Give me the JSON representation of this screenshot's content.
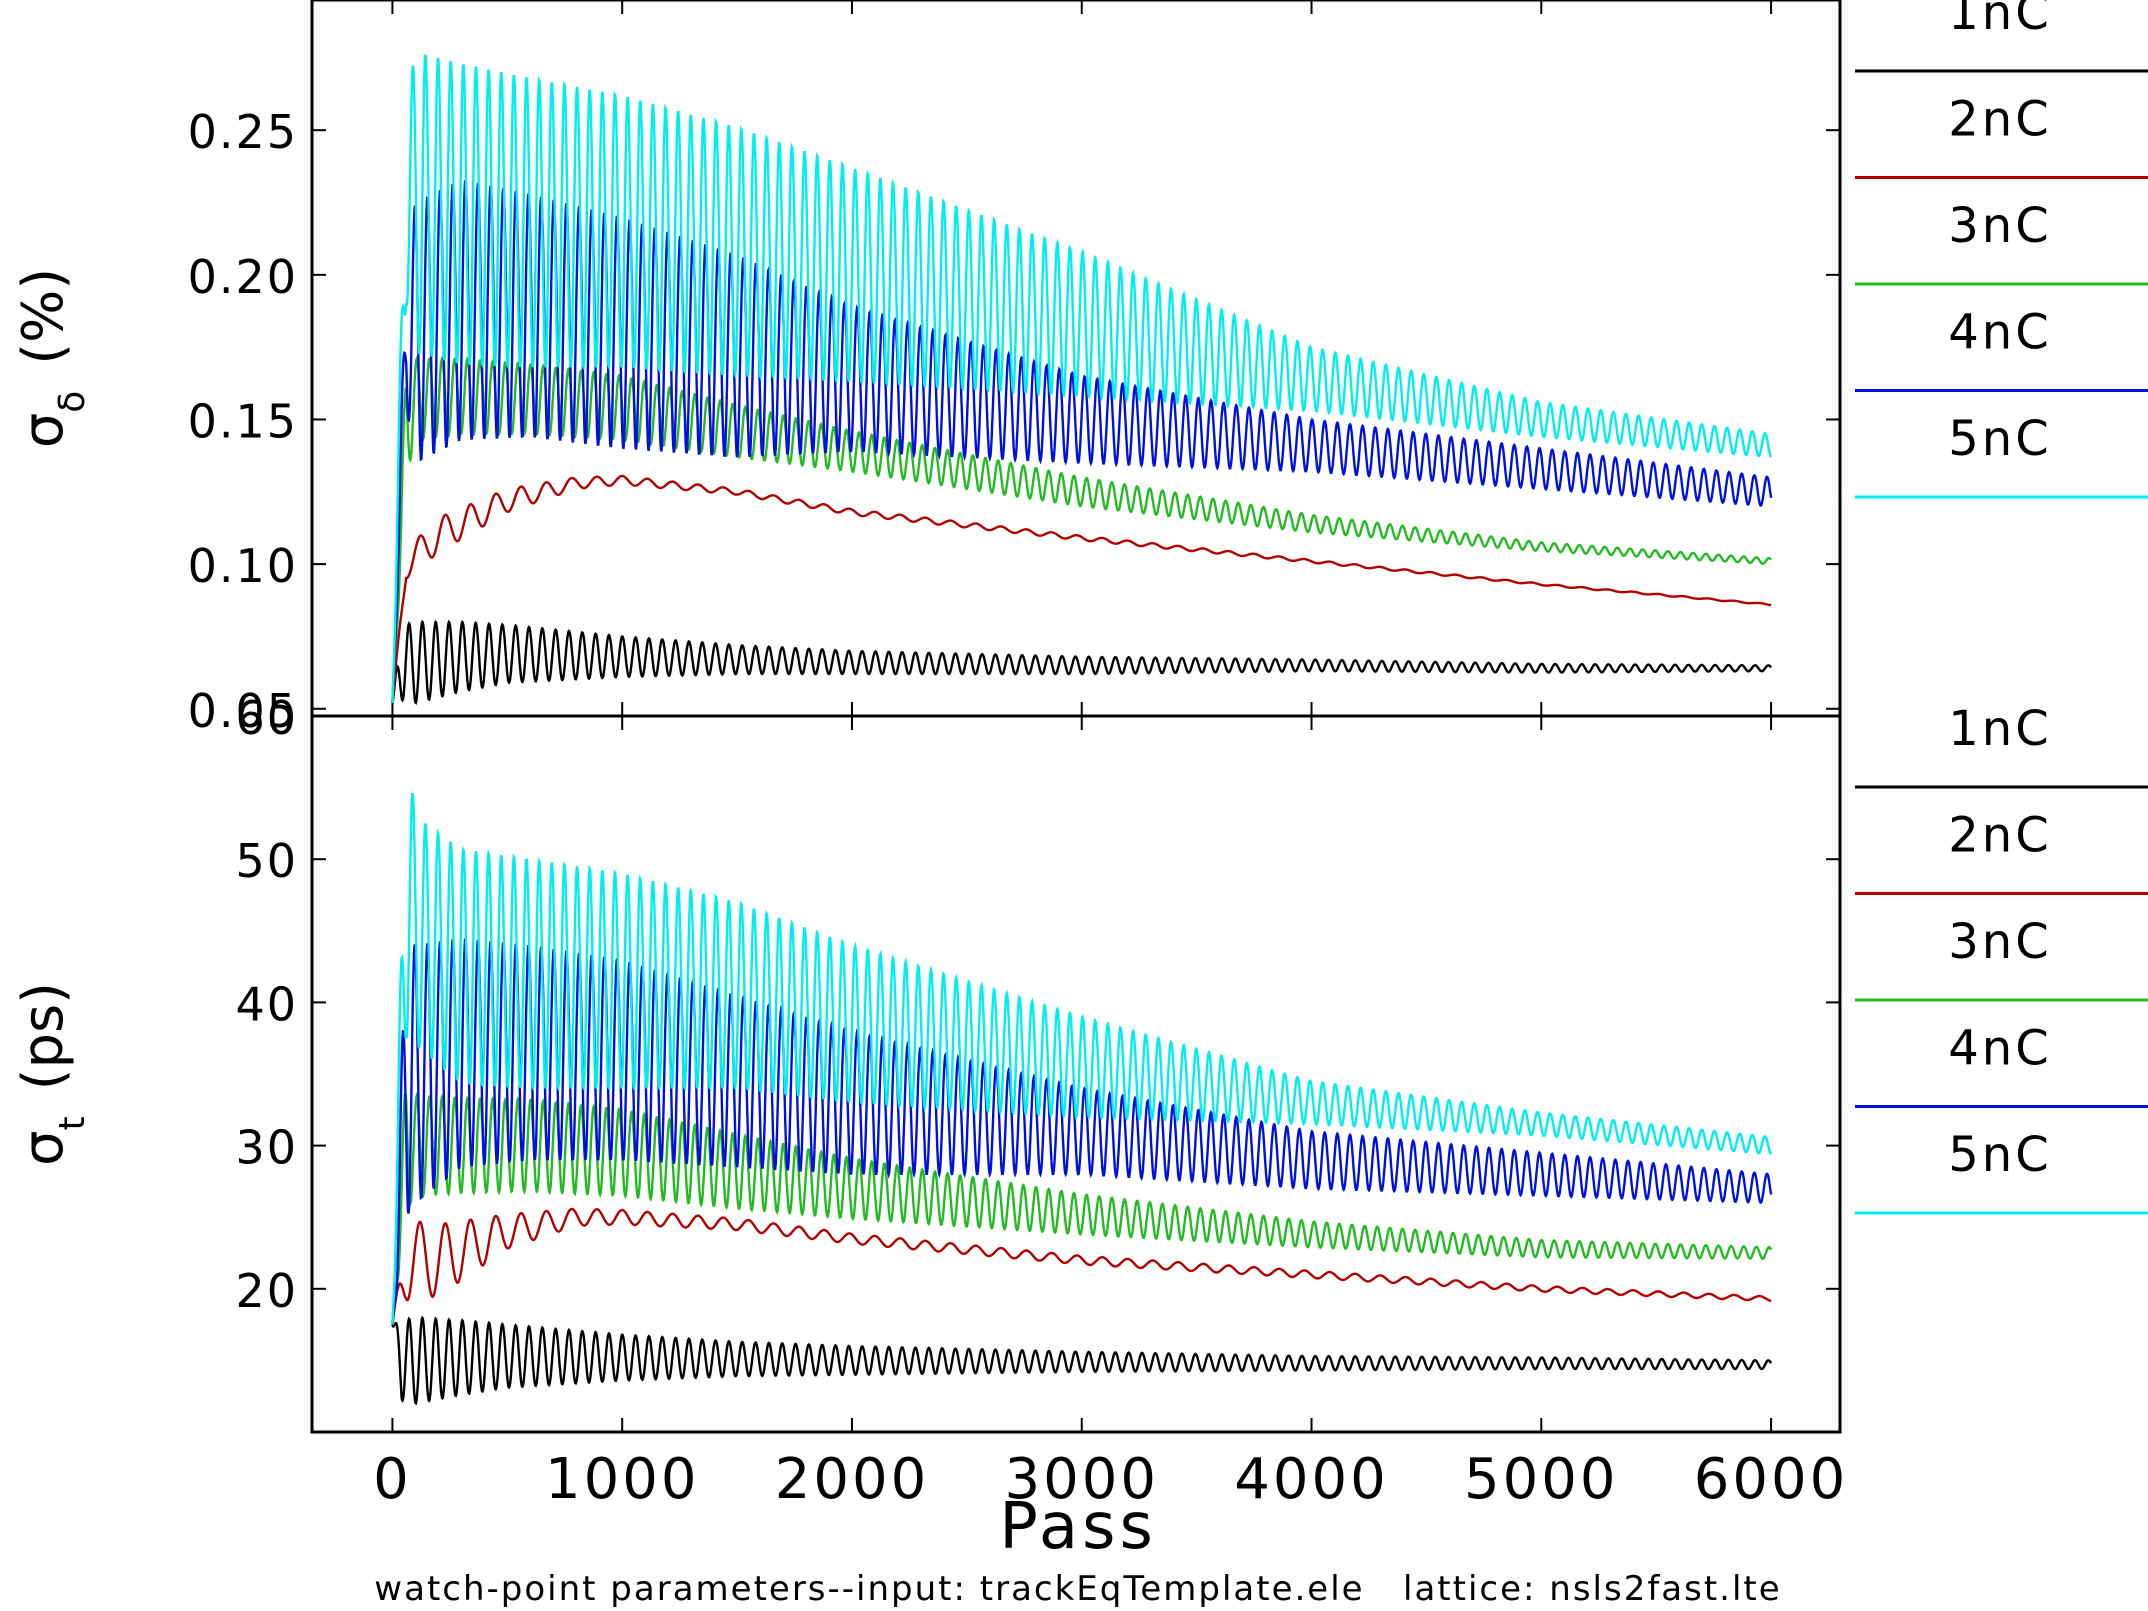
{
  "footer": {
    "caption": "watch-point parameters--input: trackEqTemplate.ele   lattice: nsls2fast.lte"
  },
  "colors": {
    "1nC": "#000000",
    "2nC": "#b00000",
    "3nC": "#22bb22",
    "4nC": "#0011dd",
    "5nC": "#00eeee"
  },
  "chart_data": [
    {
      "type": "line",
      "title": "",
      "xlabel": "Pass",
      "ylabel": "σδ (%)",
      "ylabel_main": "σ",
      "ylabel_sub": "δ",
      "ylabel_unit": "(%)",
      "xlim": [
        -350,
        6300
      ],
      "ylim": [
        0.0475,
        0.295
      ],
      "xticks": [
        0,
        1000,
        2000,
        3000,
        4000,
        5000,
        6000
      ],
      "yticks": [
        0.05,
        0.1,
        0.15,
        0.2,
        0.25
      ],
      "ytick_labels": [
        "0.05",
        "0.10",
        "0.15",
        "0.20",
        "0.25"
      ],
      "legend_position": "right",
      "series": [
        {
          "name": "1nC",
          "oscillation_period": 58,
          "x": [
            0,
            40,
            100,
            300,
            500,
            1000,
            1500,
            2000,
            3000,
            4000,
            5000,
            6000
          ],
          "mean": [
            0.052,
            0.066,
            0.066,
            0.068,
            0.069,
            0.068,
            0.067,
            0.066,
            0.065,
            0.065,
            0.064,
            0.064
          ],
          "amplitude": [
            0,
            0.013,
            0.014,
            0.012,
            0.01,
            0.007,
            0.005,
            0.004,
            0.003,
            0.002,
            0.0015,
            0.001
          ]
        },
        {
          "name": "2nC",
          "oscillation_period": 110,
          "x": [
            0,
            60,
            200,
            500,
            800,
            1000,
            1500,
            2000,
            3000,
            4000,
            5000,
            6000
          ],
          "mean": [
            0.052,
            0.1,
            0.11,
            0.122,
            0.128,
            0.129,
            0.125,
            0.118,
            0.109,
            0.101,
            0.093,
            0.086
          ],
          "amplitude": [
            0,
            0.005,
            0.006,
            0.004,
            0.002,
            0.0015,
            0.001,
            0.001,
            0.0008,
            0.0005,
            0.0003,
            0.0002
          ]
        },
        {
          "name": "3nC",
          "oscillation_period": 55,
          "x": [
            0,
            60,
            100,
            300,
            600,
            1000,
            1500,
            2000,
            3000,
            4000,
            5000,
            6000
          ],
          "mean": [
            0.052,
            0.15,
            0.157,
            0.158,
            0.157,
            0.154,
            0.146,
            0.139,
            0.125,
            0.114,
            0.106,
            0.101
          ],
          "amplitude": [
            0,
            0.02,
            0.014,
            0.013,
            0.012,
            0.011,
            0.009,
            0.007,
            0.005,
            0.003,
            0.0015,
            0.001
          ]
        },
        {
          "name": "4nC",
          "oscillation_period": 55,
          "x": [
            0,
            60,
            100,
            300,
            600,
            1000,
            1500,
            2000,
            3000,
            4000,
            5000,
            6000
          ],
          "mean": [
            0.052,
            0.18,
            0.18,
            0.188,
            0.186,
            0.18,
            0.172,
            0.164,
            0.15,
            0.141,
            0.133,
            0.125
          ],
          "amplitude": [
            0,
            0.025,
            0.045,
            0.045,
            0.042,
            0.04,
            0.035,
            0.025,
            0.015,
            0.009,
            0.007,
            0.005
          ]
        },
        {
          "name": "5nC",
          "oscillation_period": 55,
          "x": [
            0,
            60,
            100,
            300,
            600,
            1000,
            1500,
            2000,
            3000,
            4000,
            5000,
            6000
          ],
          "mean": [
            0.052,
            0.225,
            0.225,
            0.221,
            0.218,
            0.215,
            0.208,
            0.2,
            0.183,
            0.164,
            0.15,
            0.141
          ],
          "amplitude": [
            0,
            0.035,
            0.052,
            0.052,
            0.05,
            0.047,
            0.043,
            0.037,
            0.025,
            0.011,
            0.006,
            0.004
          ]
        }
      ]
    },
    {
      "type": "line",
      "title": "",
      "xlabel": "Pass",
      "ylabel": "σt (ps)",
      "ylabel_main": "σ",
      "ylabel_sub": "t",
      "ylabel_unit": "(ps)",
      "xlim": [
        -350,
        6300
      ],
      "ylim": [
        10,
        60
      ],
      "xticks": [
        0,
        1000,
        2000,
        3000,
        4000,
        5000,
        6000
      ],
      "xtick_labels": [
        "0",
        "1000",
        "2000",
        "3000",
        "4000",
        "5000",
        "6000"
      ],
      "yticks": [
        20,
        30,
        40,
        50,
        60
      ],
      "ytick_labels": [
        "20",
        "30",
        "40",
        "50",
        "60"
      ],
      "legend_position": "right",
      "series": [
        {
          "name": "1nC",
          "oscillation_period": 58,
          "x": [
            0,
            40,
            100,
            300,
            500,
            1000,
            1500,
            2000,
            3000,
            4000,
            5000,
            6000
          ],
          "mean": [
            17.5,
            15.0,
            15.0,
            15.2,
            15.3,
            15.2,
            15.1,
            15.0,
            14.9,
            14.8,
            14.8,
            14.7
          ],
          "amplitude": [
            0,
            2.8,
            3.0,
            2.6,
            2.2,
            1.6,
            1.2,
            1.0,
            0.7,
            0.5,
            0.4,
            0.3
          ]
        },
        {
          "name": "2nC",
          "oscillation_period": 110,
          "x": [
            0,
            60,
            200,
            500,
            800,
            1000,
            1500,
            2000,
            3000,
            4000,
            5000,
            6000
          ],
          "mean": [
            17.5,
            22.0,
            22.0,
            24.0,
            25.0,
            25.0,
            24.5,
            23.5,
            22.0,
            21.0,
            20.0,
            19.3
          ],
          "amplitude": [
            0,
            2.8,
            2.5,
            1.2,
            0.6,
            0.5,
            0.4,
            0.35,
            0.3,
            0.25,
            0.2,
            0.15
          ]
        },
        {
          "name": "3nC",
          "oscillation_period": 55,
          "x": [
            0,
            60,
            100,
            300,
            600,
            1000,
            1500,
            2000,
            3000,
            4000,
            5000,
            6000
          ],
          "mean": [
            17.5,
            30.5,
            30.0,
            30.0,
            30.0,
            29.5,
            28.2,
            27.0,
            25.2,
            23.8,
            22.8,
            22.5
          ],
          "amplitude": [
            0,
            5.0,
            3.5,
            3.3,
            3.2,
            3.0,
            2.6,
            2.1,
            1.4,
            0.9,
            0.6,
            0.4
          ]
        },
        {
          "name": "4nC",
          "oscillation_period": 55,
          "x": [
            0,
            60,
            100,
            300,
            600,
            1000,
            1500,
            2000,
            3000,
            4000,
            5000,
            6000
          ],
          "mean": [
            17.5,
            35.0,
            35.0,
            36.5,
            36.5,
            36.0,
            34.5,
            33.0,
            31.0,
            29.0,
            28.0,
            27.0
          ],
          "amplitude": [
            0,
            10.0,
            9.0,
            8.0,
            7.5,
            7.0,
            6.0,
            5.0,
            3.0,
            2.0,
            1.5,
            1.0
          ]
        },
        {
          "name": "5nC",
          "oscillation_period": 55,
          "x": [
            0,
            60,
            100,
            300,
            600,
            1000,
            1500,
            2000,
            3000,
            4000,
            5000,
            6000
          ],
          "mean": [
            17.5,
            48.0,
            45.0,
            42.5,
            42.0,
            41.5,
            40.5,
            38.5,
            35.5,
            33.0,
            31.5,
            30.0
          ],
          "amplitude": [
            0,
            10.5,
            8.0,
            8.2,
            8.0,
            7.5,
            6.5,
            5.5,
            3.5,
            1.5,
            0.8,
            0.6
          ]
        }
      ]
    }
  ]
}
